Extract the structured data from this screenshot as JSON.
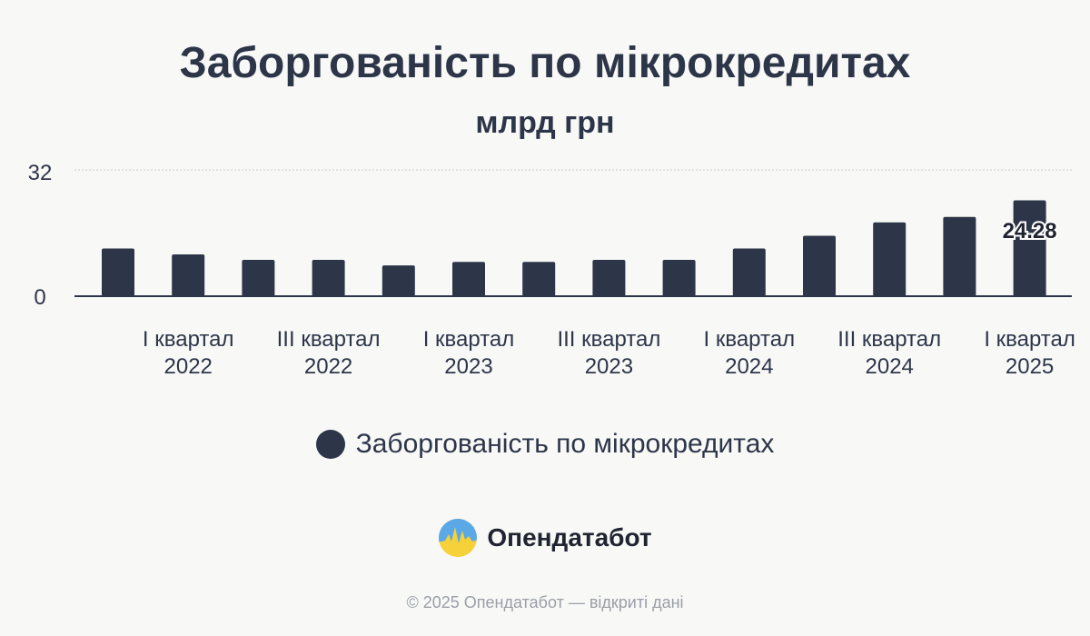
{
  "chart_data": {
    "type": "bar",
    "title": "Заборгованість по мікрокредитах",
    "subtitle": "млрд грн",
    "ylim": [
      0,
      32
    ],
    "y_ticks": [
      "32",
      "0"
    ],
    "grid": true,
    "legend_position": "bottom",
    "categories": [
      "",
      "I квартал 2022",
      "",
      "III квартал 2022",
      "",
      "I квартал 2023",
      "",
      "III квартал 2023",
      "",
      "I квартал 2024",
      "",
      "III квартал 2024",
      "",
      "I квартал 2025"
    ],
    "category_lines": [
      [
        "",
        ""
      ],
      [
        "I квартал",
        "2022"
      ],
      [
        "",
        ""
      ],
      [
        "III квартал",
        "2022"
      ],
      [
        "",
        ""
      ],
      [
        "I квартал",
        "2023"
      ],
      [
        "",
        ""
      ],
      [
        "III квартал",
        "2023"
      ],
      [
        "",
        ""
      ],
      [
        "I квартал",
        "2024"
      ],
      [
        "",
        ""
      ],
      [
        "III квартал",
        "2024"
      ],
      [
        "",
        ""
      ],
      [
        "I квартал",
        "2025"
      ]
    ],
    "series": [
      {
        "name": "Заборгованість по мікрокредитах",
        "color": "#2d3549",
        "values": [
          12.1,
          10.6,
          9.2,
          9.2,
          7.8,
          8.7,
          8.7,
          9.2,
          9.2,
          12.1,
          15.3,
          18.7,
          20.1,
          24.28
        ],
        "data_labels": [
          "",
          "",
          "",
          "",
          "",
          "",
          "",
          "",
          "",
          "",
          "",
          "",
          "",
          "24.28"
        ]
      }
    ]
  },
  "legend": {
    "label": "Заборгованість по мікрокредитах",
    "color": "#2d3549"
  },
  "brand": {
    "name": "Опендатабот",
    "logo_icon": "opendatabot-logo-icon"
  },
  "footer": {
    "text": "© 2025 Опендатабот — відкриті дані"
  }
}
